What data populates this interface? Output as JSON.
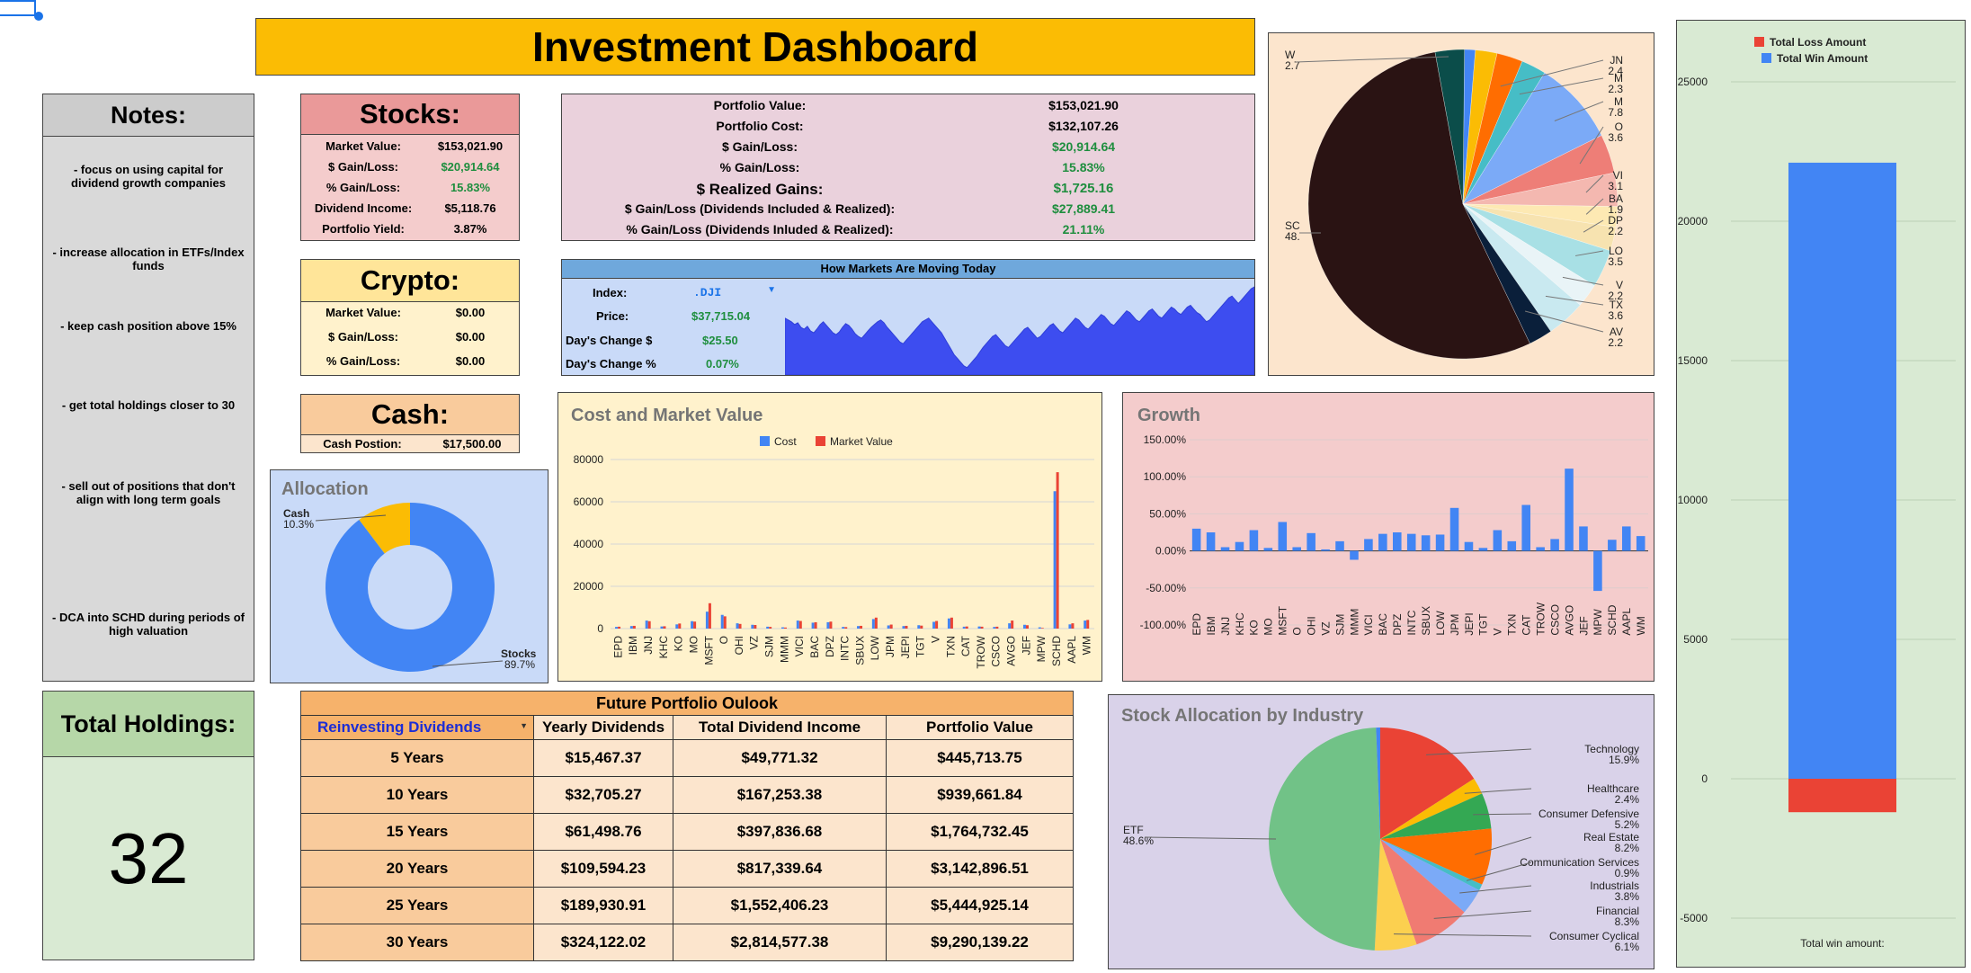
{
  "title": "Investment Dashboard",
  "notes": {
    "header": "Notes:",
    "items": [
      "- focus on using capital for dividend growth companies",
      "- increase allocation in ETFs/Index funds",
      "- keep cash position above 15%",
      "- get total holdings closer to 30",
      "- sell out of positions that don't align with long term goals",
      "- DCA into SCHD during periods of high valuation"
    ]
  },
  "holdings": {
    "header": "Total Holdings:",
    "value": "32"
  },
  "stocks": {
    "header": "Stocks:",
    "rows": [
      {
        "label": "Market Value:",
        "value": "$153,021.90",
        "green": false
      },
      {
        "label": "$ Gain/Loss:",
        "value": "$20,914.64",
        "green": true
      },
      {
        "label": "% Gain/Loss:",
        "value": "15.83%",
        "green": true
      },
      {
        "label": "Dividend Income:",
        "value": "$5,118.76",
        "green": false
      },
      {
        "label": "Portfolio Yield:",
        "value": "3.87%",
        "green": false
      }
    ]
  },
  "crypto": {
    "header": "Crypto:",
    "rows": [
      {
        "label": "Market Value:",
        "value": "$0.00"
      },
      {
        "label": "$ Gain/Loss:",
        "value": "$0.00"
      },
      {
        "label": "% Gain/Loss:",
        "value": "$0.00"
      }
    ]
  },
  "cash": {
    "header": "Cash:",
    "label": "Cash Postion:",
    "value": "$17,500.00"
  },
  "portfolio": {
    "rows": [
      {
        "label": "Portfolio Value:",
        "value": "$153,021.90",
        "green": false,
        "big": false
      },
      {
        "label": "Portfolio Cost:",
        "value": "$132,107.26",
        "green": false,
        "big": false
      },
      {
        "label": "$ Gain/Loss:",
        "value": "$20,914.64",
        "green": true,
        "big": false
      },
      {
        "label": "% Gain/Loss:",
        "value": "15.83%",
        "green": true,
        "big": false
      },
      {
        "label": "$ Realized Gains:",
        "value": "$1,725.16",
        "green": true,
        "big": true
      },
      {
        "label": "$ Gain/Loss (Dividends Included & Realized):",
        "value": "$27,889.41",
        "green": true,
        "big": false
      },
      {
        "label": "% Gain/Loss (Dividends Inluded & Realized):",
        "value": "21.11%",
        "green": true,
        "big": false
      }
    ]
  },
  "markets": {
    "header": "How Markets Are Moving Today",
    "index_label": "Index:",
    "index_value": ".DJI",
    "price_label": "Price:",
    "price_value": "$37,715.04",
    "change_label": "Day's Change $",
    "change_value": "$25.50",
    "pct_label": "Day's Change %",
    "pct_value": "0.07%"
  },
  "future": {
    "title": "Future Portfolio Oulook",
    "mode": "Reinvesting Dividends",
    "headers": [
      "Yearly Dividends",
      "Total Dividend Income",
      "Portfolio Value"
    ],
    "rows": [
      {
        "period": "5 Years",
        "yearly": "$15,467.37",
        "total": "$49,771.32",
        "value": "$445,713.75"
      },
      {
        "period": "10 Years",
        "yearly": "$32,705.27",
        "total": "$167,253.38",
        "value": "$939,661.84"
      },
      {
        "period": "15 Years",
        "yearly": "$61,498.76",
        "total": "$397,836.68",
        "value": "$1,764,732.45"
      },
      {
        "period": "20 Years",
        "yearly": "$109,594.23",
        "total": "$817,339.64",
        "value": "$3,142,896.51"
      },
      {
        "period": "25 Years",
        "yearly": "$189,930.91",
        "total": "$1,552,406.23",
        "value": "$5,444,925.14"
      },
      {
        "period": "30 Years",
        "yearly": "$324,122.02",
        "total": "$2,814,577.38",
        "value": "$9,290,139.22"
      }
    ]
  },
  "colors": {
    "title_bg": "#fbbc04",
    "stocks_bg": "#f4cccc",
    "stocks_head": "#ea9999",
    "crypto_bg": "#fff2cc",
    "crypto_head": "#ffe599",
    "cash_bg": "#fce5cd",
    "cash_head": "#f9cb9c",
    "notes_bg": "#d9d9d9",
    "notes_head": "#cccccc",
    "holdings_bg": "#d9ead3",
    "holdings_head": "#b6d7a8",
    "portfolio_bg": "#ead1dc",
    "markets_bg": "#c9daf8",
    "markets_head": "#6fa8dc",
    "green": "#1e8e3e",
    "blue": "#4285f4",
    "red": "#ea4335",
    "yellow": "#fbbc04"
  },
  "chart_data": [
    {
      "id": "market-sparkline",
      "type": "area",
      "values": [
        62,
        60,
        58,
        55,
        57,
        52,
        50,
        53,
        48,
        46,
        50,
        55,
        58,
        54,
        50,
        46,
        44,
        47,
        52,
        56,
        54,
        50,
        45,
        42,
        40,
        44,
        48,
        52,
        55,
        58,
        60,
        57,
        52,
        48,
        44,
        40,
        36,
        34,
        38,
        42,
        46,
        50,
        54,
        58,
        60,
        62,
        58,
        54,
        50,
        46,
        40,
        34,
        28,
        22,
        18,
        14,
        10,
        8,
        12,
        16,
        20,
        25,
        30,
        34,
        38,
        42,
        44,
        40,
        36,
        32,
        30,
        34,
        38,
        42,
        46,
        50,
        52,
        48,
        44,
        40,
        42,
        46,
        50,
        54,
        56,
        52,
        48,
        46,
        50,
        54,
        58,
        62,
        60,
        56,
        52,
        50,
        54,
        58,
        62,
        66,
        64,
        60,
        56,
        54,
        58,
        62,
        66,
        70,
        68,
        64,
        60,
        58,
        62,
        66,
        70,
        72,
        68,
        64,
        62,
        66,
        70,
        74,
        72,
        68,
        66,
        70,
        74,
        76,
        72,
        68,
        66,
        62,
        58,
        60,
        64,
        68,
        72,
        76,
        80,
        84,
        86,
        82,
        78,
        82,
        86,
        90,
        94,
        96
      ],
      "ylim": [
        0,
        100
      ]
    },
    {
      "id": "allocation",
      "type": "pie",
      "title": "Allocation",
      "slices": [
        {
          "label": "Stocks",
          "value": 89.7,
          "pct": "89.7%",
          "color": "#4285f4"
        },
        {
          "label": "Cash",
          "value": 10.3,
          "pct": "10.3%",
          "color": "#fbbc04"
        }
      ]
    },
    {
      "id": "cost-market",
      "type": "bar",
      "title": "Cost and Market Value",
      "legend": [
        "Cost",
        "Market Value"
      ],
      "categories": [
        "EPD",
        "IBM",
        "JNJ",
        "KHC",
        "KO",
        "MO",
        "MSFT",
        "O",
        "OHI",
        "VZ",
        "SJM",
        "MMM",
        "VICI",
        "BAC",
        "DPZ",
        "INTC",
        "SBUX",
        "LOW",
        "JPM",
        "JEPI",
        "TGT",
        "V",
        "TXN",
        "CAT",
        "TROW",
        "CSCO",
        "AVGO",
        "JEF",
        "MPW",
        "SCHD",
        "AAPL",
        "WM"
      ],
      "series": [
        {
          "name": "Cost",
          "color": "#4285f4",
          "values": [
            800,
            1200,
            3800,
            1000,
            2000,
            3500,
            8000,
            6500,
            2500,
            1800,
            900,
            600,
            3800,
            2800,
            3000,
            800,
            1200,
            4500,
            1500,
            1200,
            1600,
            3200,
            4800,
            900,
            1000,
            800,
            2500,
            1800,
            600,
            65000,
            2000,
            3800
          ]
        },
        {
          "name": "Market Value",
          "color": "#ea4335",
          "values": [
            900,
            1300,
            3500,
            1100,
            2400,
            3300,
            12000,
            5800,
            2200,
            1700,
            800,
            500,
            3600,
            3000,
            3300,
            700,
            1300,
            5200,
            1900,
            1300,
            1400,
            3600,
            5200,
            1000,
            900,
            900,
            3800,
            1600,
            300,
            74000,
            2500,
            4100
          ]
        }
      ],
      "yticks": [
        "80000",
        "60000",
        "40000",
        "20000",
        "0"
      ],
      "ylim": [
        0,
        80000
      ]
    },
    {
      "id": "growth",
      "type": "bar",
      "title": "Growth",
      "categories": [
        "EPD",
        "IBM",
        "JNJ",
        "KHC",
        "KO",
        "MO",
        "MSFT",
        "O",
        "OHI",
        "VZ",
        "SJM",
        "MMM",
        "VICI",
        "BAC",
        "DPZ",
        "INTC",
        "SBUX",
        "LOW",
        "JPM",
        "JEPI",
        "TGT",
        "V",
        "TXN",
        "CAT",
        "TROW",
        "CSCO",
        "AVGO",
        "JEF",
        "MPW",
        "SCHD",
        "AAPL",
        "WM"
      ],
      "values": [
        30,
        25,
        5,
        12,
        28,
        4,
        39,
        5,
        24,
        2,
        13,
        -12,
        16,
        23,
        25,
        23,
        21,
        22,
        58,
        12,
        4,
        28,
        13,
        62,
        5,
        16,
        111,
        33,
        -54,
        15,
        33,
        20
      ],
      "yticks": [
        "150.00%",
        "100.00%",
        "50.00%",
        "0.00%",
        "-50.00%",
        "-100.00%"
      ],
      "ylim": [
        -100,
        150
      ]
    },
    {
      "id": "win-loss",
      "type": "bar",
      "legend": [
        "Total Loss Amount",
        "Total Win Amount"
      ],
      "series": [
        {
          "name": "Total Win Amount",
          "color": "#4285f4",
          "value": 22100
        },
        {
          "name": "Total Loss Amount",
          "color": "#ea4335",
          "value": -1200
        }
      ],
      "yticks": [
        "25000",
        "20000",
        "15000",
        "10000",
        "5000",
        "0",
        "-5000"
      ],
      "ylim": [
        -5000,
        25000
      ],
      "xlabel": "Total win amount:"
    },
    {
      "id": "holdings-pie",
      "type": "pie",
      "slices": [
        {
          "label": "SC",
          "pct": "48.",
          "value": 48.0,
          "color": "#2a1313"
        },
        {
          "label": "AV",
          "pct": "2.2",
          "value": 2.2,
          "color": "#0a1f3a"
        },
        {
          "label": "TX",
          "pct": "3.6",
          "value": 3.6,
          "color": "#c9e9f0"
        },
        {
          "label": "V",
          "pct": "2.2",
          "value": 2.2,
          "color": "#e9f4f7"
        },
        {
          "label": "LO",
          "pct": "3.5",
          "value": 3.5,
          "color": "#a8e0e5"
        },
        {
          "label": "DP",
          "pct": "2.2",
          "value": 2.2,
          "color": "#f7e3b0"
        },
        {
          "label": "BA",
          "pct": "1.9",
          "value": 1.9,
          "color": "#fde9b3"
        },
        {
          "label": "VI",
          "pct": "3.1",
          "value": 3.1,
          "color": "#f4b8b0"
        },
        {
          "label": "O",
          "pct": "3.6",
          "value": 3.6,
          "color": "#ee7e77"
        },
        {
          "label": "M",
          "pct": "7.8",
          "value": 7.8,
          "color": "#7baaf7"
        },
        {
          "label": "M",
          "pct": "2.3",
          "value": 2.3,
          "color": "#46bdc6"
        },
        {
          "label": "JN",
          "pct": "2.4",
          "value": 2.4,
          "color": "#ff6d01"
        },
        {
          "label": "",
          "pct": "",
          "value": 2.0,
          "color": "#fbbc04"
        },
        {
          "label": "",
          "pct": "",
          "value": 1.0,
          "color": "#4285f4"
        },
        {
          "label": "W",
          "pct": "2.7",
          "value": 2.7,
          "color": "#0b4d4a"
        },
        {
          "label": "",
          "pct": "",
          "value": 11.5,
          "color": "#f9d2c8"
        }
      ]
    },
    {
      "id": "industry",
      "type": "pie",
      "title": "Stock Allocation by Industry",
      "slices": [
        {
          "label": "Technology",
          "pct": "15.9%",
          "value": 15.9,
          "color": "#ea4335"
        },
        {
          "label": "Healthcare",
          "pct": "2.4%",
          "value": 2.4,
          "color": "#fbbc04"
        },
        {
          "label": "Consumer Defensive",
          "pct": "5.2%",
          "value": 5.2,
          "color": "#34a853"
        },
        {
          "label": "Real Estate",
          "pct": "8.2%",
          "value": 8.2,
          "color": "#ff6d01"
        },
        {
          "label": "Communication Services",
          "pct": "0.9%",
          "value": 0.9,
          "color": "#46bdc6"
        },
        {
          "label": "Industrials",
          "pct": "3.8%",
          "value": 3.8,
          "color": "#7baaf7"
        },
        {
          "label": "Financial",
          "pct": "8.3%",
          "value": 8.3,
          "color": "#f07b72"
        },
        {
          "label": "Consumer Cyclical",
          "pct": "6.1%",
          "value": 6.1,
          "color": "#fcd04f"
        },
        {
          "label": "ETF",
          "pct": "48.6%",
          "value": 48.6,
          "color": "#71c287"
        },
        {
          "label": "",
          "pct": "",
          "value": 0.6,
          "color": "#4285f4"
        }
      ]
    }
  ]
}
